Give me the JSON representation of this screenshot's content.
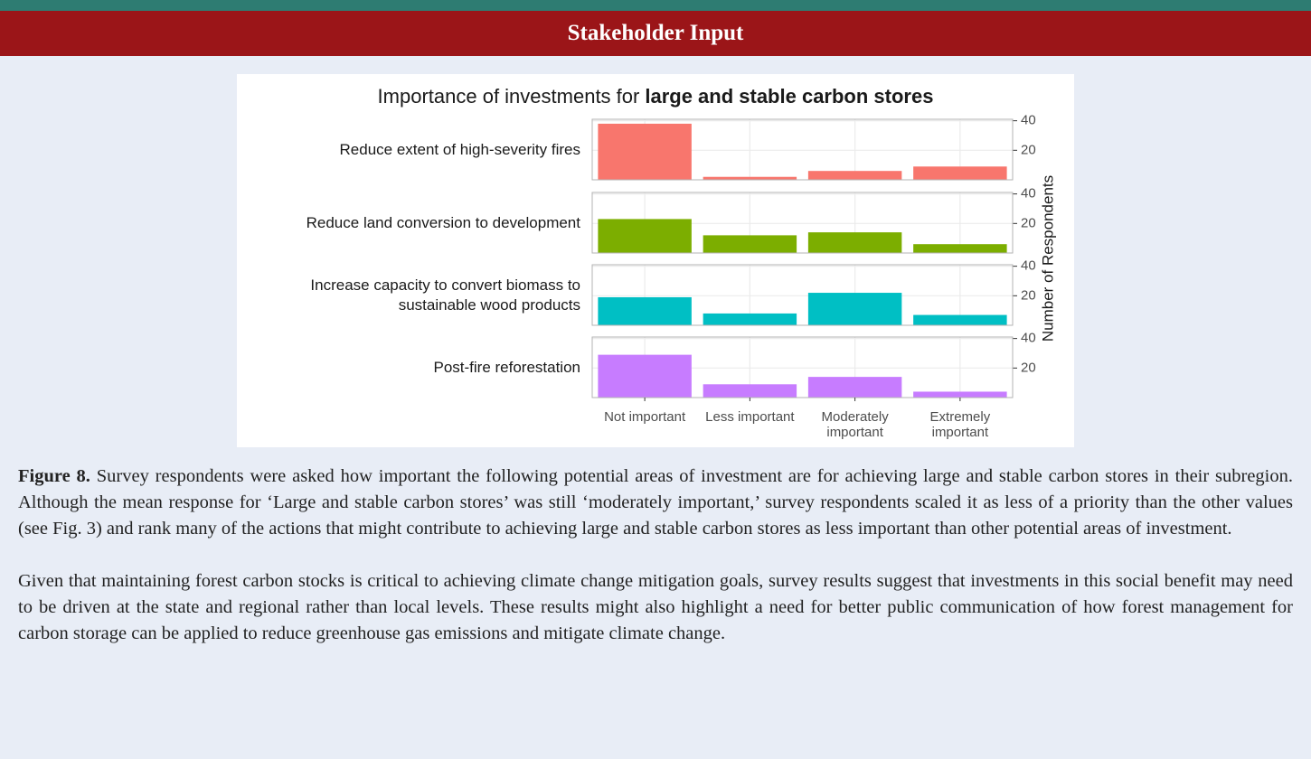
{
  "header": {
    "title": "Stakeholder Input"
  },
  "chart_data": {
    "type": "bar",
    "title_parts": [
      "Importance of investments for",
      "large and stable carbon stores"
    ],
    "categories": [
      "Not important",
      "Less important",
      "Moderately important",
      "Extremely important"
    ],
    "series": [
      {
        "name": "Reduce extent of high-severity fires",
        "color": "#f8766d",
        "values": [
          38,
          2,
          6,
          9
        ]
      },
      {
        "name": "Reduce land conversion to development",
        "color": "#7cae00",
        "values": [
          23,
          12,
          14,
          6
        ]
      },
      {
        "name": "Increase capacity to convert biomass to sustainable wood products",
        "color": "#00bfc4",
        "values": [
          19,
          8,
          22,
          7
        ]
      },
      {
        "name": "Post-fire reforestation",
        "color": "#c77cff",
        "values": [
          29,
          9,
          14,
          4
        ]
      }
    ],
    "ylim": [
      0,
      41
    ],
    "yticks": [
      20,
      40
    ],
    "y_label": "Number of Respondents",
    "grid": true
  },
  "caption": {
    "label": "Figure 8.",
    "text": "Survey respondents were asked how important the following potential areas of investment are for achieving large and stable carbon stores in their subregion. Although the mean response for ‘Large and stable carbon stores’ was still ‘moderately important,’ survey respondents scaled it as less of a priority than the other values (see Fig. 3) and rank many of the actions that might contribute to achieving large and stable carbon stores as less important than other potential areas of investment."
  },
  "paragraphs": [
    "Given that maintaining forest carbon stocks is critical to achieving climate change mitigation goals, survey results suggest that investments in this social benefit may need to be driven at the state and regional rather than local levels. These results might also highlight a need for better public communication of how forest management for carbon storage can be applied to reduce greenhouse gas emissions and mitigate climate change."
  ]
}
